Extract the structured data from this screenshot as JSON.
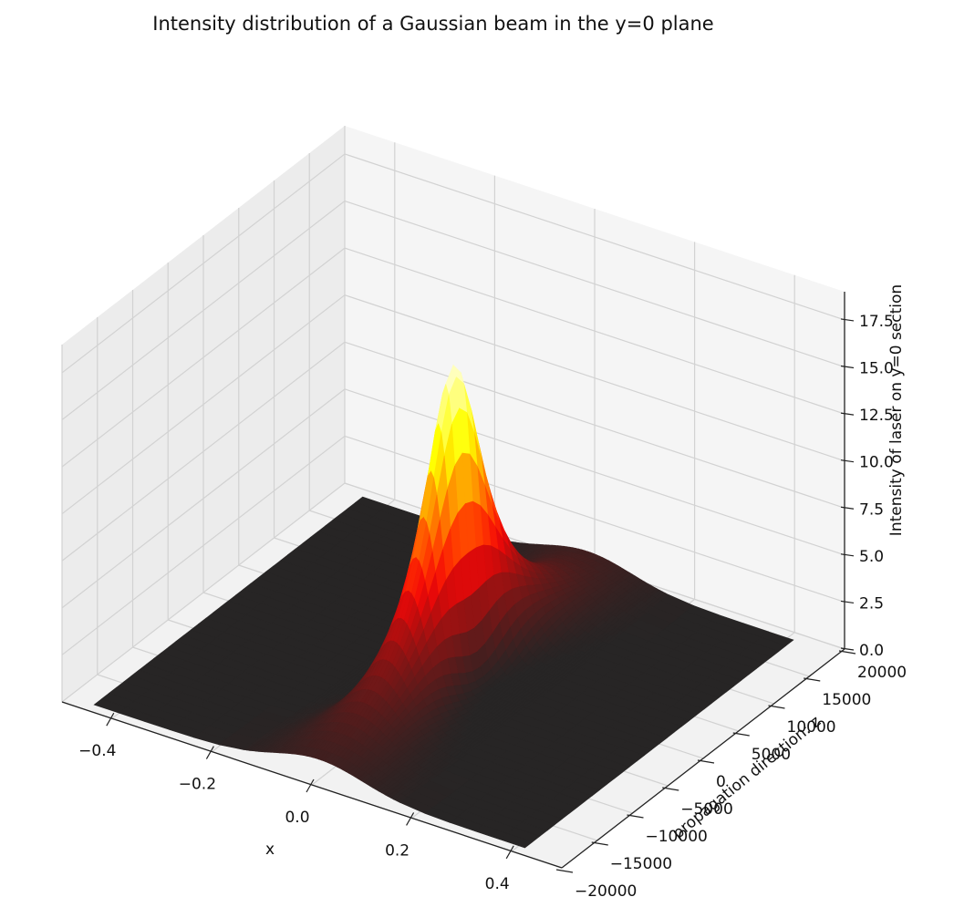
{
  "chart_data": {
    "type": "surface3d",
    "title": "Intensity distribution of a Gaussian beam in the y=0 plane",
    "xlabel": "x",
    "ylabel": "propagation direction: z",
    "zlabel": "Intensity of laser on y=0 section",
    "x_ticks": [
      "−0.4",
      "−0.2",
      "0.0",
      "0.2",
      "0.4"
    ],
    "z_axis_ticks": [
      "−20000",
      "−15000",
      "−10000",
      "−5000",
      "0",
      "5000",
      "10000",
      "15000",
      "20000"
    ],
    "intensity_ticks": [
      "0.0",
      "2.5",
      "5.0",
      "7.5",
      "10.0",
      "12.5",
      "15.0",
      "17.5"
    ],
    "xlim": [
      -0.5,
      0.5
    ],
    "zlim": [
      -20000,
      20000
    ],
    "intensity_lim": [
      0,
      19
    ],
    "peak_intensity": 16.5,
    "peak_at": {
      "x": 0.0,
      "z": 0
    },
    "waist_min": 0.045,
    "rayleigh_range": 5000,
    "colormap": "hot",
    "grid": true,
    "pane_color": "#f2f2f2"
  }
}
